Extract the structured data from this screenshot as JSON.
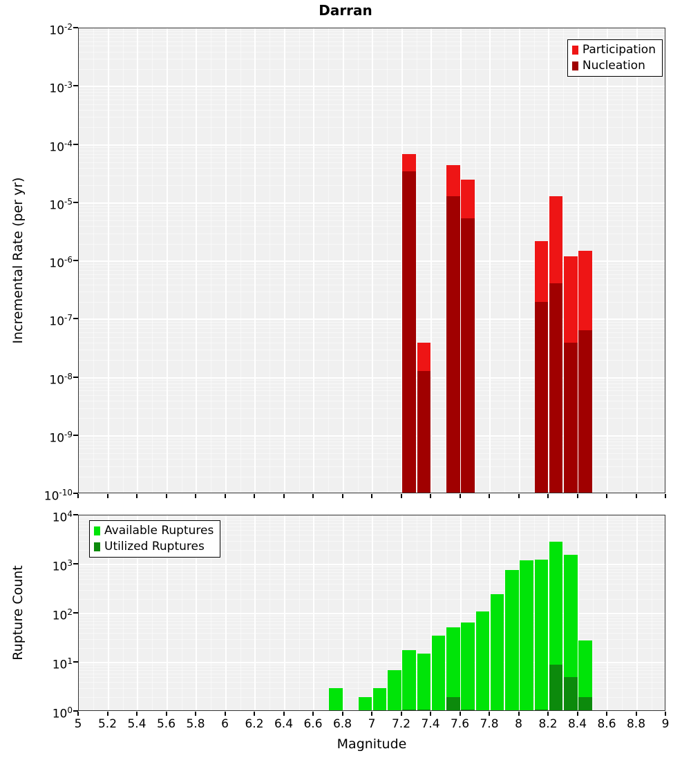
{
  "title": "Darran",
  "xlabel": "Magnitude",
  "chart_data": [
    {
      "type": "bar",
      "id": "rate",
      "ylabel": "Incremental Rate (per yr)",
      "xlim": [
        5,
        9
      ],
      "ylim_exp": [
        -10,
        -2
      ],
      "bar_width": 0.092,
      "legend_position": "top-right",
      "series": [
        {
          "name": "Participation",
          "color": "#ee1515",
          "bars": [
            [
              7.25,
              7e-05
            ],
            [
              7.35,
              4e-08
            ],
            [
              7.55,
              4.5e-05
            ],
            [
              7.65,
              2.5e-05
            ],
            [
              8.15,
              2.2e-06
            ],
            [
              8.25,
              1.3e-05
            ],
            [
              8.35,
              1.2e-06
            ],
            [
              8.45,
              1.5e-06
            ]
          ]
        },
        {
          "name": "Nucleation",
          "color": "#a00000",
          "bars": [
            [
              7.25,
              3.5e-05
            ],
            [
              7.35,
              1.3e-08
            ],
            [
              7.55,
              1.3e-05
            ],
            [
              7.65,
              5.5e-06
            ],
            [
              8.15,
              2e-07
            ],
            [
              8.25,
              4.2e-07
            ],
            [
              8.35,
              4e-08
            ],
            [
              8.45,
              6.5e-08
            ]
          ]
        }
      ]
    },
    {
      "type": "bar",
      "id": "count",
      "ylabel": "Rupture Count",
      "xlim": [
        5,
        9
      ],
      "ylim_exp": [
        0,
        4
      ],
      "bar_width": 0.092,
      "legend_position": "top-left",
      "series": [
        {
          "name": "Available Ruptures",
          "color": "#00e408",
          "bars": [
            [
              6.75,
              3
            ],
            [
              6.95,
              2
            ],
            [
              7.05,
              3
            ],
            [
              7.15,
              7
            ],
            [
              7.25,
              18
            ],
            [
              7.35,
              15
            ],
            [
              7.45,
              35
            ],
            [
              7.55,
              52
            ],
            [
              7.65,
              65
            ],
            [
              7.75,
              110
            ],
            [
              7.85,
              250
            ],
            [
              7.95,
              780
            ],
            [
              8.05,
              1200
            ],
            [
              8.15,
              1250
            ],
            [
              8.25,
              2900
            ],
            [
              8.35,
              1600
            ],
            [
              8.45,
              28
            ]
          ]
        },
        {
          "name": "Utilized Ruptures",
          "color": "#0c8a0c",
          "bars": [
            [
              7.25,
              1
            ],
            [
              7.35,
              1
            ],
            [
              7.55,
              2
            ],
            [
              7.65,
              1
            ],
            [
              8.15,
              1
            ],
            [
              8.25,
              9
            ],
            [
              8.35,
              5
            ],
            [
              8.45,
              2
            ]
          ]
        }
      ]
    }
  ],
  "xticks": [
    {
      "v": 5.0,
      "label": "5"
    },
    {
      "v": 5.2,
      "label": "5.2"
    },
    {
      "v": 5.4,
      "label": "5.4"
    },
    {
      "v": 5.6,
      "label": "5.6"
    },
    {
      "v": 5.8,
      "label": "5.8"
    },
    {
      "v": 6.0,
      "label": "6"
    },
    {
      "v": 6.2,
      "label": "6.2"
    },
    {
      "v": 6.4,
      "label": "6.4"
    },
    {
      "v": 6.6,
      "label": "6.6"
    },
    {
      "v": 6.8,
      "label": "6.8"
    },
    {
      "v": 7.0,
      "label": "7"
    },
    {
      "v": 7.2,
      "label": "7.2"
    },
    {
      "v": 7.4,
      "label": "7.4"
    },
    {
      "v": 7.6,
      "label": "7.6"
    },
    {
      "v": 7.8,
      "label": "7.8"
    },
    {
      "v": 8.0,
      "label": "8"
    },
    {
      "v": 8.2,
      "label": "8.2"
    },
    {
      "v": 8.4,
      "label": "8.4"
    },
    {
      "v": 8.6,
      "label": "8.6"
    },
    {
      "v": 8.8,
      "label": "8.8"
    },
    {
      "v": 9.0,
      "label": "9"
    }
  ]
}
